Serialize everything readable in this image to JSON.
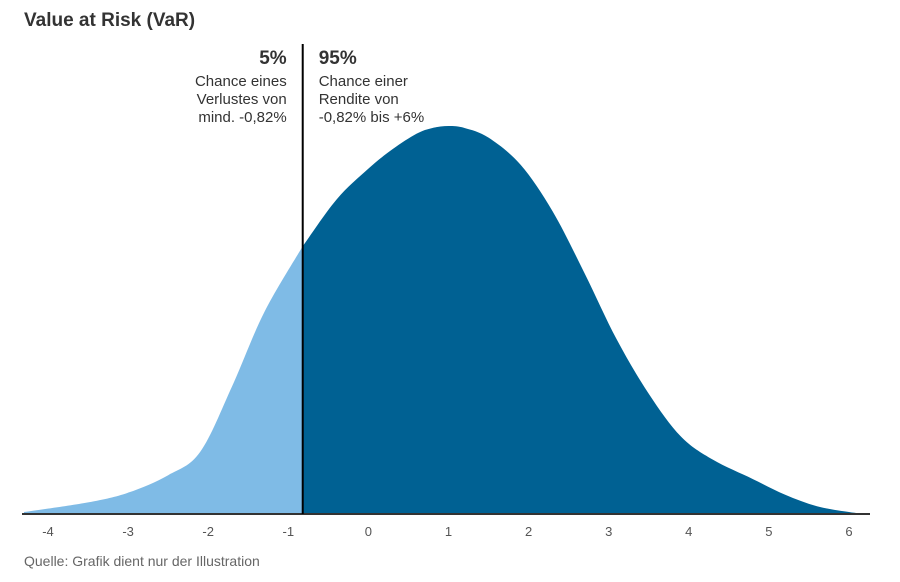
{
  "chart_data": {
    "type": "area",
    "title": "Value at Risk (VaR)",
    "source": "Quelle: Grafik dient nur der Illustration",
    "x_ticks": [
      -4,
      -3,
      -2,
      -1,
      0,
      1,
      2,
      3,
      4,
      5,
      6
    ],
    "xlim": [
      -4.3,
      6.2
    ],
    "var_threshold": -0.82,
    "series": [
      {
        "values_x": [
          -4.3,
          -3.5,
          -3.0,
          -2.5,
          -2.1,
          -1.7,
          -1.3,
          -0.82
        ],
        "values_y": [
          0.005,
          0.03,
          0.055,
          0.1,
          0.16,
          0.33,
          0.52,
          0.69
        ]
      },
      {
        "values_x": [
          -0.82,
          -0.4,
          0.0,
          0.3,
          0.6,
          0.8,
          1.0,
          1.2,
          1.5,
          1.9,
          2.3,
          2.7,
          3.1,
          3.5,
          3.9,
          4.3,
          4.8,
          5.2,
          5.6,
          6.0,
          6.2
        ],
        "values_y": [
          0.69,
          0.81,
          0.89,
          0.94,
          0.98,
          0.995,
          1.0,
          0.995,
          0.97,
          0.9,
          0.78,
          0.62,
          0.45,
          0.31,
          0.2,
          0.14,
          0.09,
          0.05,
          0.02,
          0.005,
          0.0
        ]
      }
    ],
    "colors": {
      "left": "#7fbbe6",
      "right": "#006193",
      "line": "#000000"
    },
    "annotations": {
      "left": {
        "pct": "5%",
        "lines": [
          "Chance eines",
          "Verlustes von",
          "mind. -0,82%"
        ]
      },
      "right": {
        "pct": "95%",
        "lines": [
          "Chance einer",
          "Rendite von",
          "-0,82% bis +6%"
        ]
      }
    }
  }
}
